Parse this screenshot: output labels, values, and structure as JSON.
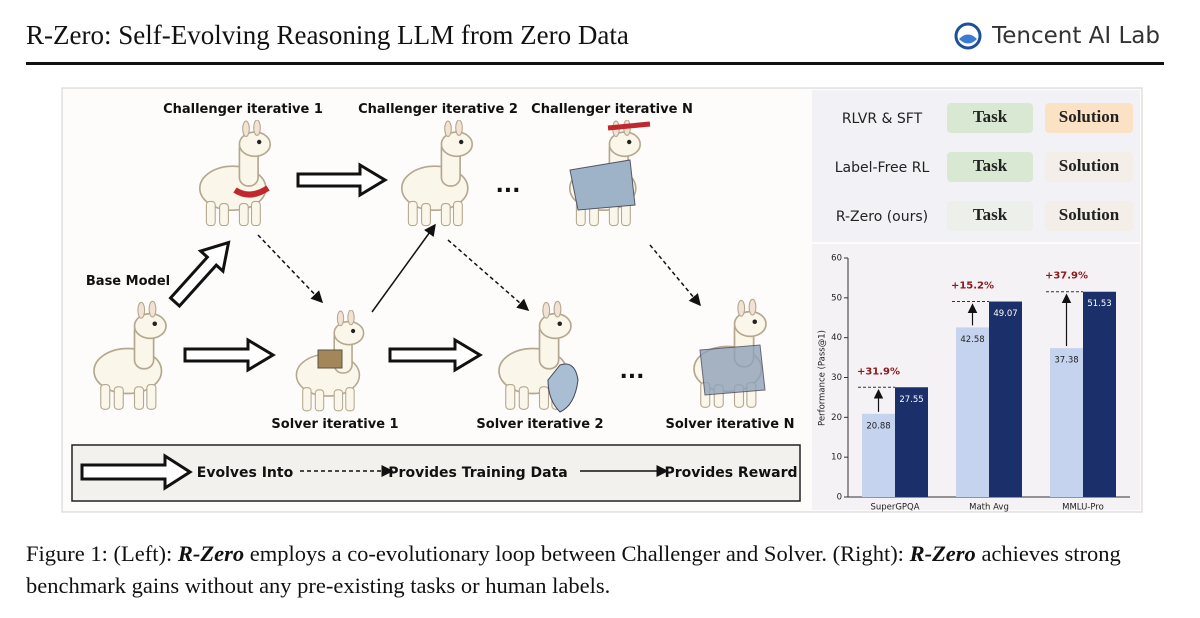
{
  "header": {
    "title": "R-Zero: Self-Evolving Reasoning LLM from Zero Data",
    "logo": "Tencent AI Lab"
  },
  "diagram": {
    "challengers": [
      "Challenger iterative 1",
      "Challenger iterative 2",
      "Challenger iterative N"
    ],
    "solvers": [
      "Solver iterative 1",
      "Solver iterative 2",
      "Solver iterative N"
    ],
    "base_model": "Base Model",
    "ellipses": [
      "...",
      "..."
    ],
    "legend": [
      "Evolves Into",
      "Provides Training Data",
      "Provides Reward"
    ]
  },
  "comparison": {
    "rows": [
      [
        "RLVR & SFT",
        "Task",
        "Solution"
      ],
      [
        "Label-Free RL",
        "Task",
        "Solution"
      ],
      [
        "R-Zero (ours)",
        "Task",
        "Solution"
      ]
    ]
  },
  "chart_data": {
    "type": "bar",
    "ylabel": "Performance (Pass@1)",
    "categories": [
      "SuperGPQA",
      "Math Avg",
      "MMLU-Pro"
    ],
    "series": [
      {
        "color": "#c5d3ef",
        "values": [
          20.88,
          42.58,
          37.38
        ]
      },
      {
        "color": "#1b2f6b",
        "values": [
          27.55,
          49.07,
          51.53
        ]
      }
    ],
    "annotations": [
      "+31.9%",
      "+15.2%",
      "+37.9%"
    ],
    "ylim": [
      0,
      60
    ],
    "yticks": [
      0,
      10,
      20,
      30,
      40,
      50,
      60
    ]
  },
  "caption": {
    "parts": [
      "Figure 1: (Left):",
      "R-Zero",
      "employs a co-evolutionary loop between Challenger and Solver. (Right):",
      "R-Zero",
      "achieves strong benchmark gains without any pre-existing tasks or human labels."
    ]
  }
}
